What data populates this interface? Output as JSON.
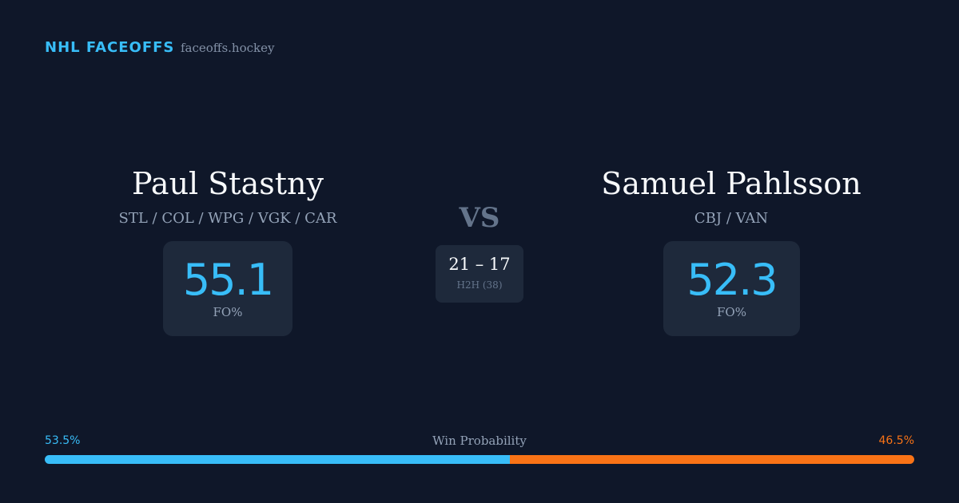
{
  "header": {
    "brand": "NHL FACEOFFS",
    "site": "faceoffs.hockey"
  },
  "players": [
    {
      "name": "Paul Stastny",
      "teams": "STL / COL / WPG / VGK / CAR",
      "fo_pct": 55.1,
      "fo_label": "FO%"
    },
    {
      "name": "Samuel Pahlsson",
      "teams": "CBJ / VAN",
      "fo_pct": 52.3,
      "fo_label": "FO%"
    }
  ],
  "versus": "VS",
  "h2h": {
    "score": "21 – 17",
    "label": "H2H (38)"
  },
  "win_probability": {
    "title": "Win Probability",
    "values": [
      53.5,
      46.5
    ],
    "value_labels": [
      "53.5%",
      "46.5%"
    ],
    "colors": [
      "#38bdf8",
      "#f97316"
    ]
  }
}
